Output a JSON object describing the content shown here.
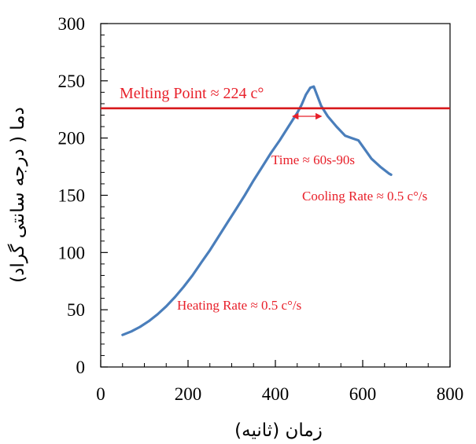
{
  "chart_data": {
    "type": "line",
    "xlabel": "زمان (ثانیه)",
    "ylabel": "دما ( درجه سانتی گراد)",
    "xlim": [
      0,
      800
    ],
    "ylim": [
      0,
      300
    ],
    "x_ticks": [
      0,
      200,
      400,
      600,
      800
    ],
    "y_ticks": [
      0,
      50,
      100,
      150,
      200,
      250,
      300
    ],
    "grid": false,
    "series": [
      {
        "color": "#4a7ebb",
        "points": [
          [
            50,
            28
          ],
          [
            70,
            31
          ],
          [
            90,
            35
          ],
          [
            110,
            40
          ],
          [
            130,
            46
          ],
          [
            150,
            53
          ],
          [
            170,
            61
          ],
          [
            190,
            70
          ],
          [
            210,
            80
          ],
          [
            230,
            91
          ],
          [
            250,
            102
          ],
          [
            270,
            114
          ],
          [
            290,
            126
          ],
          [
            310,
            138
          ],
          [
            330,
            150
          ],
          [
            350,
            163
          ],
          [
            370,
            175
          ],
          [
            390,
            187
          ],
          [
            410,
            198
          ],
          [
            430,
            210
          ],
          [
            450,
            222
          ],
          [
            460,
            229
          ],
          [
            470,
            238
          ],
          [
            480,
            244
          ],
          [
            488,
            245
          ],
          [
            495,
            238
          ],
          [
            505,
            228
          ],
          [
            520,
            219
          ],
          [
            540,
            210
          ],
          [
            560,
            202
          ],
          [
            575,
            200
          ],
          [
            590,
            198
          ],
          [
            605,
            190
          ],
          [
            620,
            182
          ],
          [
            640,
            175
          ],
          [
            660,
            169
          ],
          [
            665,
            168
          ]
        ]
      }
    ],
    "reference_line": {
      "y": 226,
      "color": "#d7191c"
    },
    "arrow": {
      "x1": 440,
      "x2": 505,
      "y": 219,
      "color": "#e8202a"
    },
    "annotations": {
      "melting_point": "Melting Point ≈ 224 c°",
      "time": "Time ≈ 60s-90s",
      "cooling_rate": "Cooling Rate ≈ 0.5 c°/s",
      "heating_rate": "Heating Rate ≈ 0.5 c°/s"
    }
  }
}
